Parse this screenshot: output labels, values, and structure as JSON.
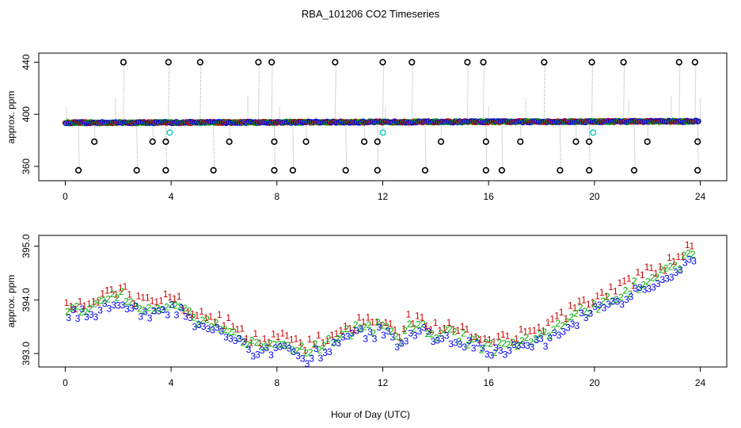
{
  "figure": {
    "title": "RBA_101206  CO2 Timeseries",
    "xlabel": "Hour of Day (UTC)"
  },
  "chart_data": [
    {
      "type": "scatter",
      "panel": "top",
      "ylabel": "approx. ppm",
      "xlim": [
        -1,
        25
      ],
      "ylim": [
        349,
        447
      ],
      "xticks": [
        "0",
        "4",
        "8",
        "12",
        "16",
        "20",
        "24"
      ],
      "yticks": [
        "360",
        "400",
        "440"
      ],
      "baseline_start": 393.5,
      "baseline_end": 394.6,
      "series_colors": {
        "black": "#000000",
        "red": "#cc0000",
        "green": "#00aa00",
        "blue": "#0000ee",
        "cyan": "#22cccc",
        "line": "#999999"
      },
      "spikes_440": [
        2.2,
        3.9,
        5.1,
        7.3,
        7.8,
        10.2,
        12.0,
        13.1,
        15.2,
        15.8,
        18.1,
        19.9,
        21.1,
        23.2,
        23.8
      ],
      "spikes_379": [
        1.1,
        3.3,
        3.8,
        6.2,
        7.9,
        9.1,
        11.3,
        11.8,
        14.2,
        15.9,
        17.2,
        19.3,
        19.8,
        22.0,
        23.9
      ],
      "spikes_357": [
        0.5,
        2.7,
        3.8,
        5.6,
        7.9,
        8.6,
        10.6,
        11.8,
        13.6,
        15.9,
        16.5,
        18.7,
        19.8,
        21.5,
        23.9
      ],
      "cyan_points": [
        [
          3.95,
          386
        ],
        [
          12.0,
          386
        ],
        [
          19.95,
          386
        ]
      ]
    },
    {
      "type": "scatter",
      "panel": "bottom",
      "ylabel": "approx. ppm",
      "xlim": [
        -1,
        25
      ],
      "ylim": [
        392.75,
        395.2
      ],
      "xticks": [
        "0",
        "4",
        "8",
        "12",
        "16",
        "20",
        "24"
      ],
      "yticks": [
        "393.0",
        "394.0",
        "395.0"
      ],
      "marker_labels": [
        "1",
        "2",
        "3"
      ],
      "marker_colors": [
        "#cc0000",
        "#00aa00",
        "#0000ee"
      ],
      "trend": [
        [
          0.0,
          393.8
        ],
        [
          1.0,
          393.85
        ],
        [
          2.0,
          394.1
        ],
        [
          3.0,
          393.8
        ],
        [
          4.0,
          393.95
        ],
        [
          5.0,
          393.6
        ],
        [
          6.0,
          393.5
        ],
        [
          7.0,
          393.15
        ],
        [
          8.0,
          393.2
        ],
        [
          9.0,
          393.0
        ],
        [
          10.0,
          393.2
        ],
        [
          11.0,
          393.45
        ],
        [
          12.0,
          393.5
        ],
        [
          12.5,
          393.2
        ],
        [
          13.0,
          393.55
        ],
        [
          14.0,
          393.4
        ],
        [
          15.0,
          393.3
        ],
        [
          16.0,
          393.1
        ],
        [
          17.0,
          393.2
        ],
        [
          18.0,
          393.3
        ],
        [
          19.0,
          393.65
        ],
        [
          20.0,
          393.9
        ],
        [
          21.0,
          394.1
        ],
        [
          22.0,
          394.4
        ],
        [
          23.0,
          394.6
        ],
        [
          23.7,
          394.9
        ]
      ]
    }
  ]
}
